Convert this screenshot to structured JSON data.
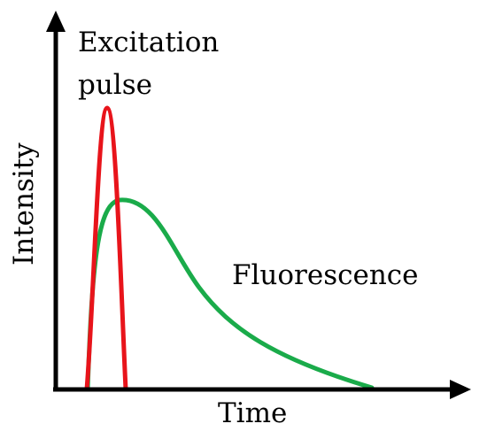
{
  "diagram": {
    "excitation_label": [
      "Excitation",
      "pulse"
    ],
    "fluorescence_label": "Fluorescence",
    "x_axis_label": "Time",
    "y_axis_label": "Intensity",
    "colors": {
      "excitation_curve": "#e8141b",
      "fluorescence_curve": "#1aab4a",
      "axes": "#000000"
    }
  }
}
